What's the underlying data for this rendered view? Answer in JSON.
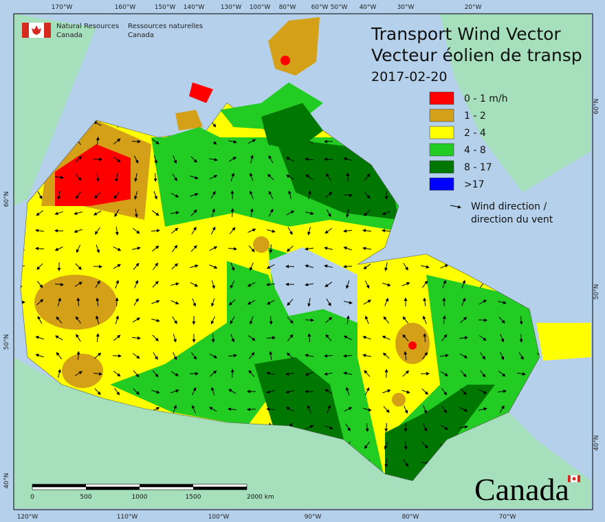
{
  "header": {
    "org_en": [
      "Natural Resources",
      "Canada"
    ],
    "org_fr": [
      "Ressources naturelles",
      "Canada"
    ],
    "title": [
      "Transport Wind Vector",
      "Vecteur éolien de transp"
    ],
    "date": "2017-02-20"
  },
  "legend": {
    "items": [
      {
        "label": "0 - 1 m/h",
        "color": "#ff0000"
      },
      {
        "label": "1 - 2",
        "color": "#d4a017"
      },
      {
        "label": "2 - 4",
        "color": "#ffff00"
      },
      {
        "label": "4 - 8",
        "color": "#22cc22"
      },
      {
        "label": "8 - 17",
        "color": "#007700"
      },
      {
        "label": ">17",
        "color": "#0000ff"
      }
    ],
    "wind": [
      "Wind direction /",
      "direction du vent"
    ]
  },
  "graticule": {
    "top": [
      "170°W",
      "160°W",
      "150°W",
      "140°W",
      "130°W",
      "100°W",
      "80°W",
      "60°W",
      "50°W",
      "40°W",
      "30°W",
      "20°W"
    ],
    "bottom": [
      "120°W",
      "110°W",
      "100°W",
      "90°W",
      "80°W",
      "70°W"
    ],
    "left": [
      "60°N",
      "50°N",
      "40°N"
    ],
    "right": [
      "60°N",
      "50°N",
      "40°N"
    ]
  },
  "scale_bar": [
    "0",
    "500",
    "1000",
    "1500",
    "2000 km"
  ],
  "wordmark": "Canada"
}
